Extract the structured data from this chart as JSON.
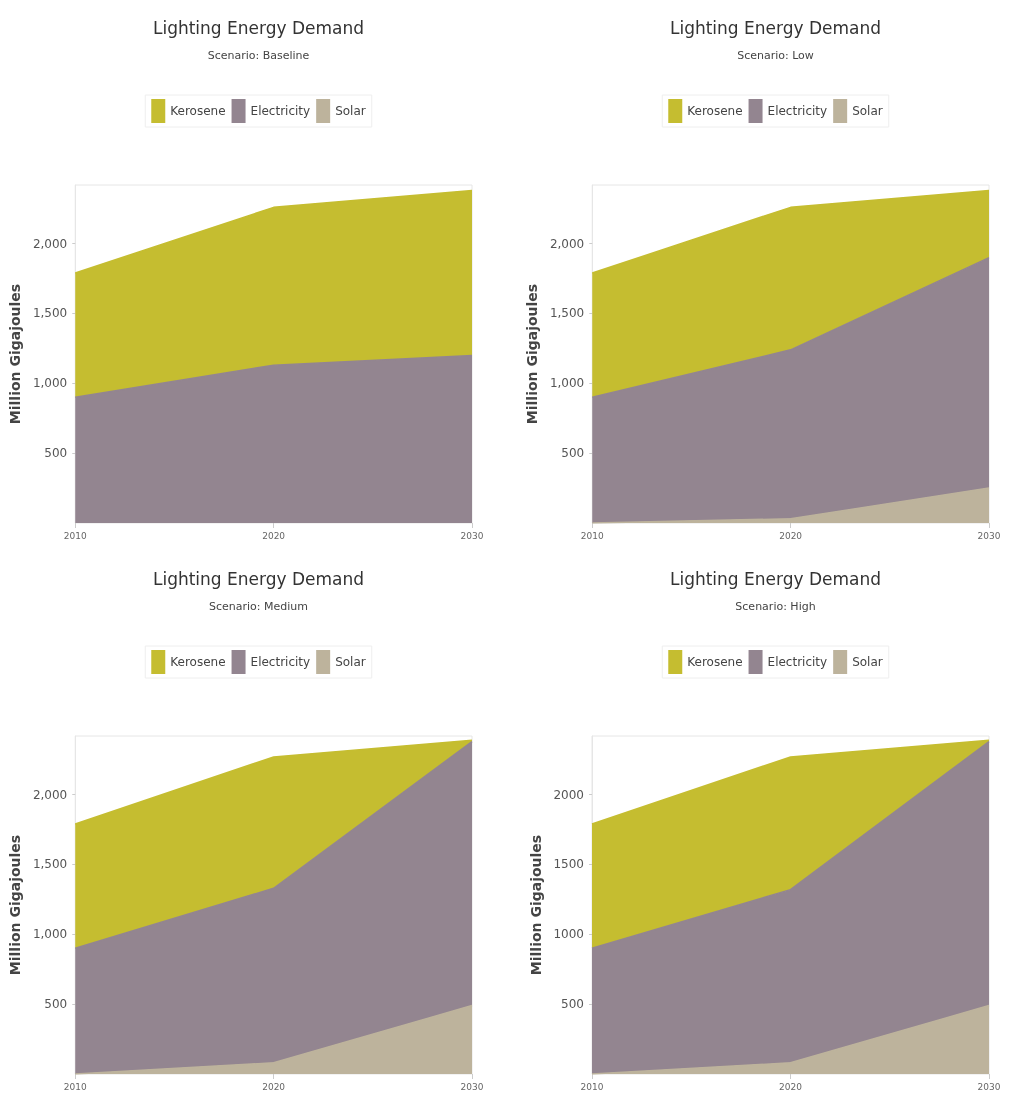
{
  "chart_data": [
    {
      "type": "area",
      "title": "Lighting Energy Demand",
      "subtitle": "Scenario: Baseline",
      "ylabel": "Million Gigajoules",
      "categories": [
        "2010",
        "2020",
        "2030"
      ],
      "ylim": [
        0,
        2420
      ],
      "yticks": [
        {
          "value": 500,
          "label": "500"
        },
        {
          "value": 1000,
          "label": "1,000"
        },
        {
          "value": 1500,
          "label": "1,500"
        },
        {
          "value": 2000,
          "label": "2,000"
        }
      ],
      "stacked": true,
      "legend": "top",
      "grid": false,
      "series": [
        {
          "name": "Solar",
          "color": "#bdb39c",
          "values": [
            null,
            null,
            null
          ]
        },
        {
          "name": "Electricity",
          "color": "#938590",
          "values": [
            900,
            1130,
            1200
          ]
        },
        {
          "name": "Kerosene",
          "color": "#c5bd30",
          "values": [
            890,
            1130,
            1180
          ]
        }
      ]
    },
    {
      "type": "area",
      "title": "Lighting Energy Demand",
      "subtitle": "Scenario: Low",
      "ylabel": "Million Gigajoules",
      "categories": [
        "2010",
        "2020",
        "2030"
      ],
      "ylim": [
        0,
        2420
      ],
      "yticks": [
        {
          "value": 500,
          "label": "500"
        },
        {
          "value": 1000,
          "label": "1,000"
        },
        {
          "value": 1500,
          "label": "1,500"
        },
        {
          "value": 2000,
          "label": "2,000"
        }
      ],
      "stacked": true,
      "legend": "top",
      "grid": false,
      "series": [
        {
          "name": "Solar",
          "color": "#bdb39c",
          "values": [
            0,
            30,
            250
          ]
        },
        {
          "name": "Electricity",
          "color": "#938590",
          "values": [
            900,
            1210,
            1650
          ]
        },
        {
          "name": "Kerosene",
          "color": "#c5bd30",
          "values": [
            890,
            1020,
            480
          ]
        }
      ]
    },
    {
      "type": "area",
      "title": "Lighting Energy Demand",
      "subtitle": "Scenario: Medium",
      "ylabel": "Million Gigajoules",
      "categories": [
        "2010",
        "2020",
        "2030"
      ],
      "ylim": [
        0,
        2420
      ],
      "yticks": [
        {
          "value": 500,
          "label": "500"
        },
        {
          "value": 1000,
          "label": "1,000"
        },
        {
          "value": 1500,
          "label": "1,500"
        },
        {
          "value": 2000,
          "label": "2,000"
        }
      ],
      "stacked": true,
      "legend": "top",
      "grid": false,
      "series": [
        {
          "name": "Solar",
          "color": "#bdb39c",
          "values": [
            0,
            80,
            490
          ]
        },
        {
          "name": "Electricity",
          "color": "#938590",
          "values": [
            900,
            1250,
            1890
          ]
        },
        {
          "name": "Kerosene",
          "color": "#c5bd30",
          "values": [
            890,
            940,
            10
          ]
        }
      ]
    },
    {
      "type": "area",
      "title": "Lighting Energy Demand",
      "subtitle": "Scenario: High",
      "ylabel": "Million Gigajoules",
      "categories": [
        "2010",
        "2020",
        "2030"
      ],
      "ylim": [
        0,
        2420
      ],
      "yticks": [
        500,
        1000,
        1500,
        2000
      ],
      "stacked": true,
      "legend": "top",
      "grid": false,
      "series": [
        {
          "name": "Solar",
          "color": "#bdb39c",
          "values": [
            0,
            80,
            490
          ]
        },
        {
          "name": "Electricity",
          "color": "#938590",
          "values": [
            900,
            1240,
            1890
          ]
        },
        {
          "name": "Kerosene",
          "color": "#c5bd30",
          "values": [
            890,
            950,
            10
          ]
        }
      ]
    }
  ]
}
